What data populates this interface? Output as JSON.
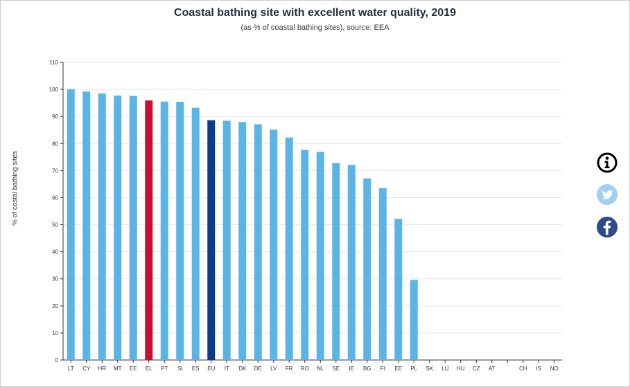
{
  "chart_data": {
    "type": "bar",
    "title": "Coastal bathing site with excellent water quality, 2019",
    "subtitle": "(as % of coastal bathing sites), source: EEA",
    "xlabel": "",
    "ylabel": "% of costal bathing sites",
    "ylim": [
      0,
      110
    ],
    "yticks": [
      0,
      10,
      20,
      30,
      40,
      50,
      60,
      70,
      80,
      90,
      100,
      110
    ],
    "grid": true,
    "categories": [
      "LT",
      "CY",
      "HR",
      "MT",
      "EE",
      "EL",
      "PT",
      "SI",
      "ES",
      "EU",
      "IT",
      "DK",
      "DE",
      "LV",
      "FR",
      "RO",
      "NL",
      "SE",
      "IE",
      "BG",
      "FI",
      "EE",
      "PL",
      "SK",
      "LU",
      "HU",
      "CZ",
      "AT",
      "",
      "CH",
      "IS",
      "NO"
    ],
    "values": [
      100,
      99.2,
      98.5,
      97.7,
      97.6,
      95.9,
      95.5,
      95.4,
      93.2,
      88.6,
      88.4,
      87.9,
      87.1,
      85.1,
      82.2,
      77.6,
      76.9,
      72.8,
      72.1,
      67.1,
      63.5,
      52.2,
      29.6,
      null,
      null,
      null,
      null,
      null,
      null,
      null,
      null,
      null
    ],
    "colors": {
      "default": "#5ab4e5",
      "highlight": "#c8102e",
      "average": "#0b3a8f"
    },
    "highlight_category_index": 5,
    "average_category_index": 9
  },
  "social": {
    "info_icon": "info-icon",
    "twitter_icon": "twitter-icon",
    "facebook_icon": "facebook-icon"
  }
}
